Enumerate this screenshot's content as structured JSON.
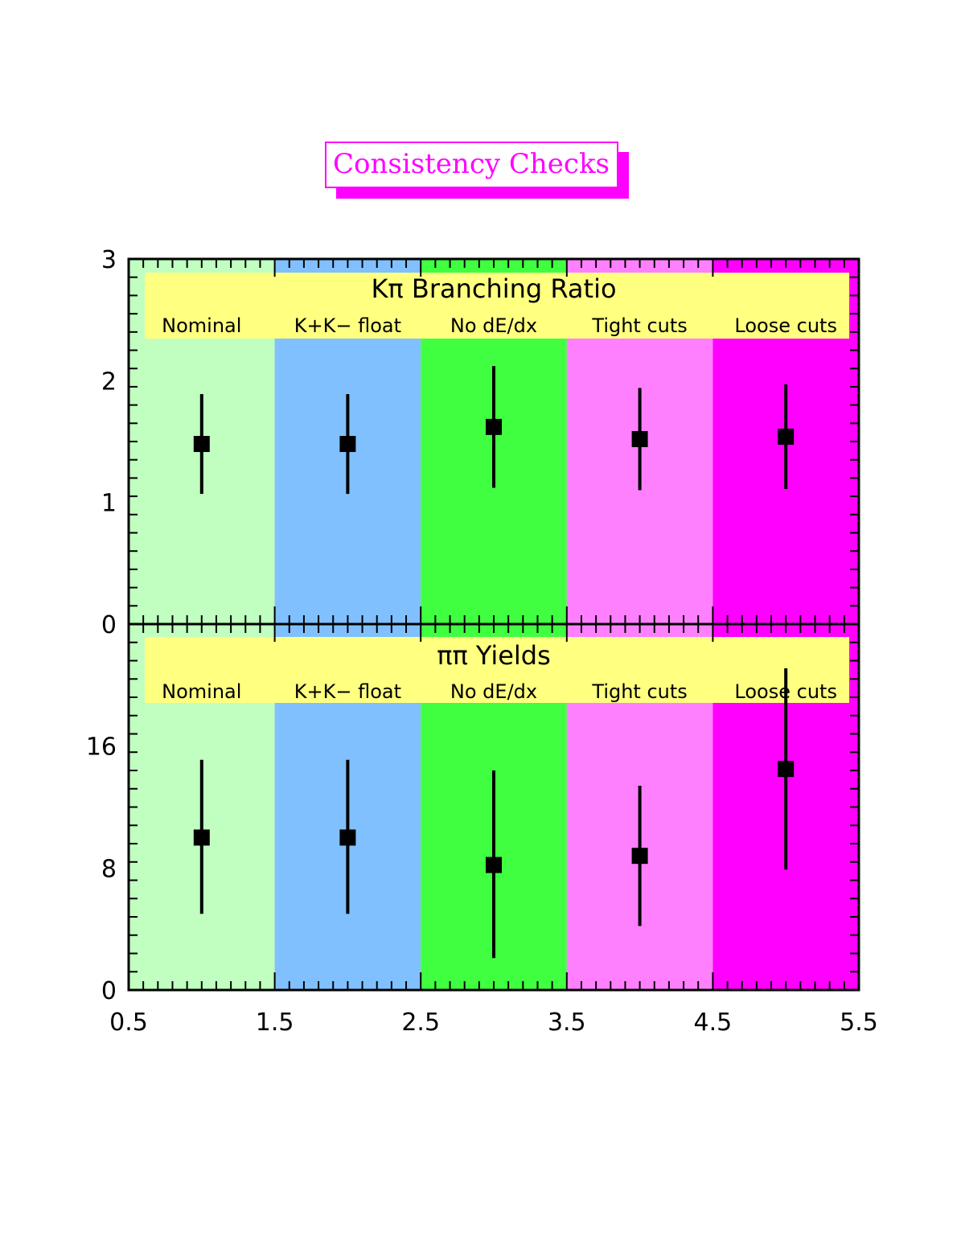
{
  "figure_title": "Consistency Checks",
  "chart_data": [
    {
      "type": "scatter",
      "title": "Kπ Branching Ratio",
      "categories": [
        "Nominal",
        "K+K− float",
        "No dE/dx",
        "Tight cuts",
        "Loose cuts"
      ],
      "band_colors": [
        "#c0ffc0",
        "#80c0ff",
        "#40ff40",
        "#ff80ff",
        "#ff00ff"
      ],
      "label_box_color": "#ffff80",
      "x": [
        1,
        2,
        3,
        4,
        5
      ],
      "y": [
        1.48,
        1.48,
        1.62,
        1.52,
        1.54
      ],
      "y_err_low": [
        0.41,
        0.41,
        0.5,
        0.42,
        0.43
      ],
      "y_err_high": [
        0.41,
        0.41,
        0.5,
        0.42,
        0.43
      ],
      "xlim": [
        0.5,
        5.5
      ],
      "ylim": [
        0,
        3
      ],
      "yticks": [
        0,
        1,
        2,
        3
      ],
      "ytick_labels": [
        "0",
        "1",
        "2",
        "3"
      ],
      "grid": false
    },
    {
      "type": "scatter",
      "title": "ππ Yields",
      "categories": [
        "Nominal",
        "K+K− float",
        "No dE/dx",
        "Tight cuts",
        "Loose cuts"
      ],
      "band_colors": [
        "#c0ffc0",
        "#80c0ff",
        "#40ff40",
        "#ff80ff",
        "#ff00ff"
      ],
      "label_box_color": "#ffff80",
      "x": [
        1,
        2,
        3,
        4,
        5
      ],
      "y": [
        10.0,
        10.0,
        8.2,
        8.8,
        14.5
      ],
      "y_err_low": [
        5.0,
        5.0,
        6.1,
        4.6,
        6.6
      ],
      "y_err_high": [
        5.1,
        5.1,
        6.2,
        4.6,
        6.6
      ],
      "xlim": [
        0.5,
        5.5
      ],
      "ylim": [
        0,
        24
      ],
      "yticks": [
        0,
        8,
        16
      ],
      "ytick_labels": [
        "0",
        "8",
        "16"
      ],
      "xticks": [
        0.5,
        1.5,
        2.5,
        3.5,
        4.5,
        5.5
      ],
      "xtick_labels": [
        "0.5",
        "1.5",
        "2.5",
        "3.5",
        "4.5",
        "5.5"
      ],
      "grid": false
    }
  ]
}
